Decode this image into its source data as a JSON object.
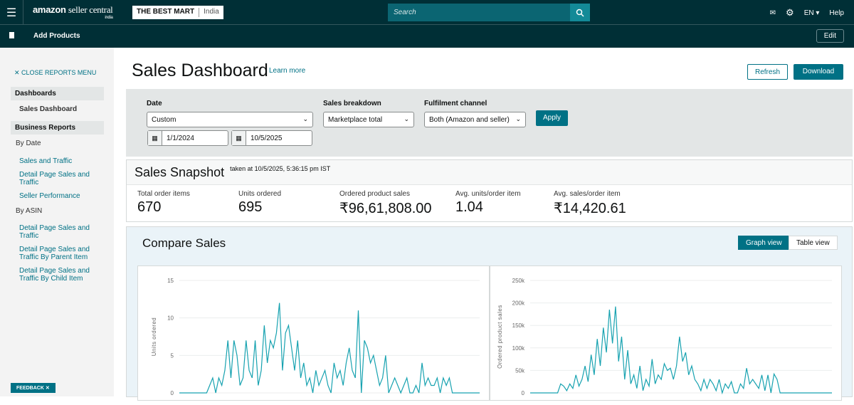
{
  "header": {
    "logo": "amazon",
    "logo_suffix": "seller central",
    "logo_region": "india",
    "store": "THE BEST MART",
    "marketplace": "India",
    "search_placeholder": "Search",
    "language": "EN",
    "help": "Help"
  },
  "subnav": {
    "add_products": "Add Products",
    "edit": "Edit"
  },
  "sidebar": {
    "close": "CLOSE REPORTS MENU",
    "dashboards": "Dashboards",
    "sales_dashboard": "Sales Dashboard",
    "business_reports": "Business Reports",
    "by_date": "By Date",
    "date_items": [
      "Sales and Traffic",
      "Detail Page Sales and Traffic",
      "Seller Performance"
    ],
    "by_asin": "By ASIN",
    "asin_items": [
      "Detail Page Sales and Traffic",
      "Detail Page Sales and Traffic By Parent Item",
      "Detail Page Sales and Traffic By Child Item"
    ],
    "feedback": "FEEDBACK"
  },
  "page": {
    "title": "Sales Dashboard",
    "learn_more": "Learn more",
    "refresh": "Refresh",
    "download": "Download"
  },
  "filters": {
    "date_label": "Date",
    "date_value": "Custom",
    "start": "1/1/2024",
    "end": "10/5/2025",
    "breakdown_label": "Sales breakdown",
    "breakdown_value": "Marketplace total",
    "channel_label": "Fulfilment channel",
    "channel_value": "Both (Amazon and seller)",
    "apply": "Apply"
  },
  "snapshot": {
    "title": "Sales Snapshot",
    "taken": "taken at 10/5/2025, 5:36:15 pm IST",
    "metrics": [
      {
        "label": "Total order items",
        "value": "670"
      },
      {
        "label": "Units ordered",
        "value": "695"
      },
      {
        "label": "Ordered product sales",
        "value": "₹96,61,808.00"
      },
      {
        "label": "Avg. units/order item",
        "value": "1.04"
      },
      {
        "label": "Avg. sales/order item",
        "value": "₹14,420.61"
      }
    ]
  },
  "compare": {
    "title": "Compare Sales",
    "graph_view": "Graph view",
    "table_view": "Table view"
  },
  "accent": "#007185",
  "chart_data": [
    {
      "type": "line",
      "ylabel": "Units ordered",
      "ylim": [
        0,
        15
      ],
      "yticks": [
        "0",
        "5",
        "10",
        "15"
      ],
      "color": "#17a2b0",
      "values": [
        0,
        0,
        0,
        0,
        0,
        0,
        0,
        0,
        0,
        0,
        1,
        2,
        0,
        2,
        1,
        3,
        7,
        2,
        7,
        5,
        1,
        2,
        7,
        3,
        2,
        7,
        1,
        3,
        9,
        4,
        7,
        6,
        8,
        12,
        3,
        8,
        9,
        6,
        3,
        7,
        2,
        4,
        1,
        2,
        0,
        3,
        1,
        2,
        3,
        1,
        0,
        4,
        2,
        3,
        1,
        4,
        6,
        3,
        2,
        11,
        0,
        7,
        6,
        4,
        5,
        3,
        1,
        2,
        5,
        0,
        1,
        2,
        1,
        0,
        1,
        2,
        0,
        0,
        1,
        0,
        4,
        1,
        2,
        1,
        1,
        2,
        0,
        2,
        1,
        2,
        0,
        0,
        0,
        0,
        0,
        0,
        0,
        0,
        0,
        0
      ]
    },
    {
      "type": "line",
      "ylabel": "Ordered product sales",
      "ylim": [
        0,
        250000
      ],
      "yticks": [
        "0",
        "50k",
        "100k",
        "150k",
        "200k",
        "250k"
      ],
      "color": "#17a2b0",
      "values": [
        0,
        0,
        0,
        0,
        0,
        0,
        0,
        0,
        0,
        0,
        20000,
        15000,
        5000,
        20000,
        10000,
        40000,
        15000,
        30000,
        60000,
        25000,
        85000,
        40000,
        120000,
        60000,
        145000,
        90000,
        185000,
        110000,
        192000,
        70000,
        125000,
        30000,
        95000,
        20000,
        40000,
        10000,
        60000,
        5000,
        30000,
        15000,
        75000,
        20000,
        40000,
        30000,
        65000,
        50000,
        55000,
        30000,
        60000,
        125000,
        70000,
        90000,
        40000,
        60000,
        30000,
        20000,
        5000,
        30000,
        10000,
        30000,
        20000,
        5000,
        30000,
        0,
        20000,
        10000,
        25000,
        0,
        0,
        20000,
        10000,
        55000,
        20000,
        30000,
        20000,
        10000,
        40000,
        5000,
        40000,
        0,
        42000,
        30000,
        0,
        0,
        0,
        0,
        0,
        0,
        0,
        0,
        0,
        0,
        0,
        0,
        0,
        0,
        0,
        0,
        0,
        0
      ]
    }
  ]
}
